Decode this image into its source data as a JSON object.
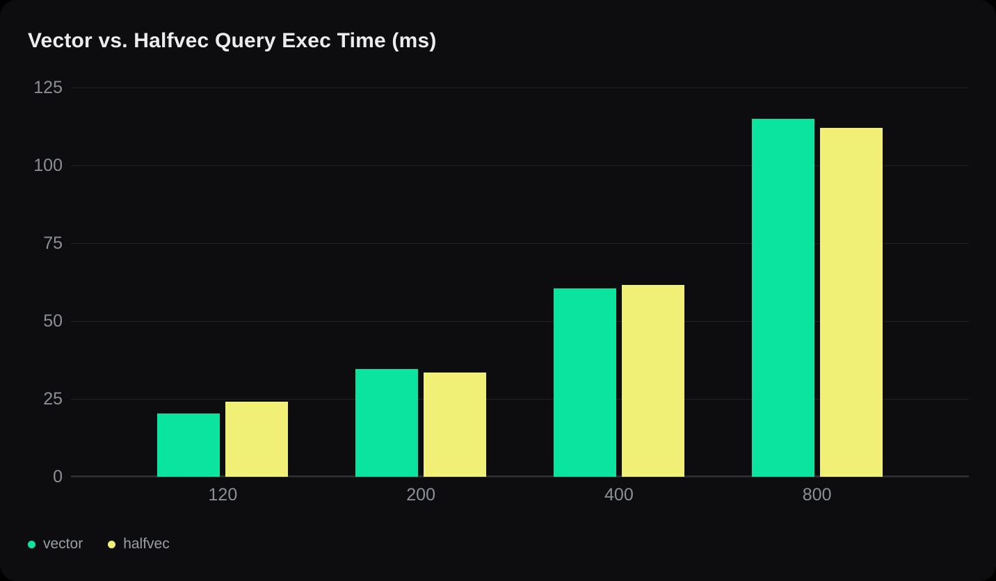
{
  "card": {
    "title": "Vector vs. Halfvec Query Exec Time (ms)"
  },
  "chart_data": {
    "type": "bar",
    "title": "Vector vs. Halfvec Query Exec Time (ms)",
    "categories": [
      "120",
      "200",
      "400",
      "800"
    ],
    "series": [
      {
        "name": "vector",
        "color": "#0BE49E",
        "values": [
          20.3,
          34.5,
          60.5,
          114.9
        ]
      },
      {
        "name": "halfvec",
        "color": "#EFF075",
        "values": [
          24.0,
          33.4,
          61.5,
          112.1
        ]
      }
    ],
    "xlabel": "",
    "ylabel": "",
    "ylim": [
      0,
      125
    ],
    "yticks": [
      0,
      25,
      50,
      75,
      100,
      125
    ],
    "grid": true,
    "legend_position": "bottom-left"
  },
  "colors": {
    "page_background": "#000000",
    "card_background": "#0d0d0f",
    "gridline": "#232326",
    "axis_line": "#2d2d30",
    "tick_label": "#8b8f96",
    "legend_label": "#9a9ea5",
    "title": "#ececee"
  }
}
